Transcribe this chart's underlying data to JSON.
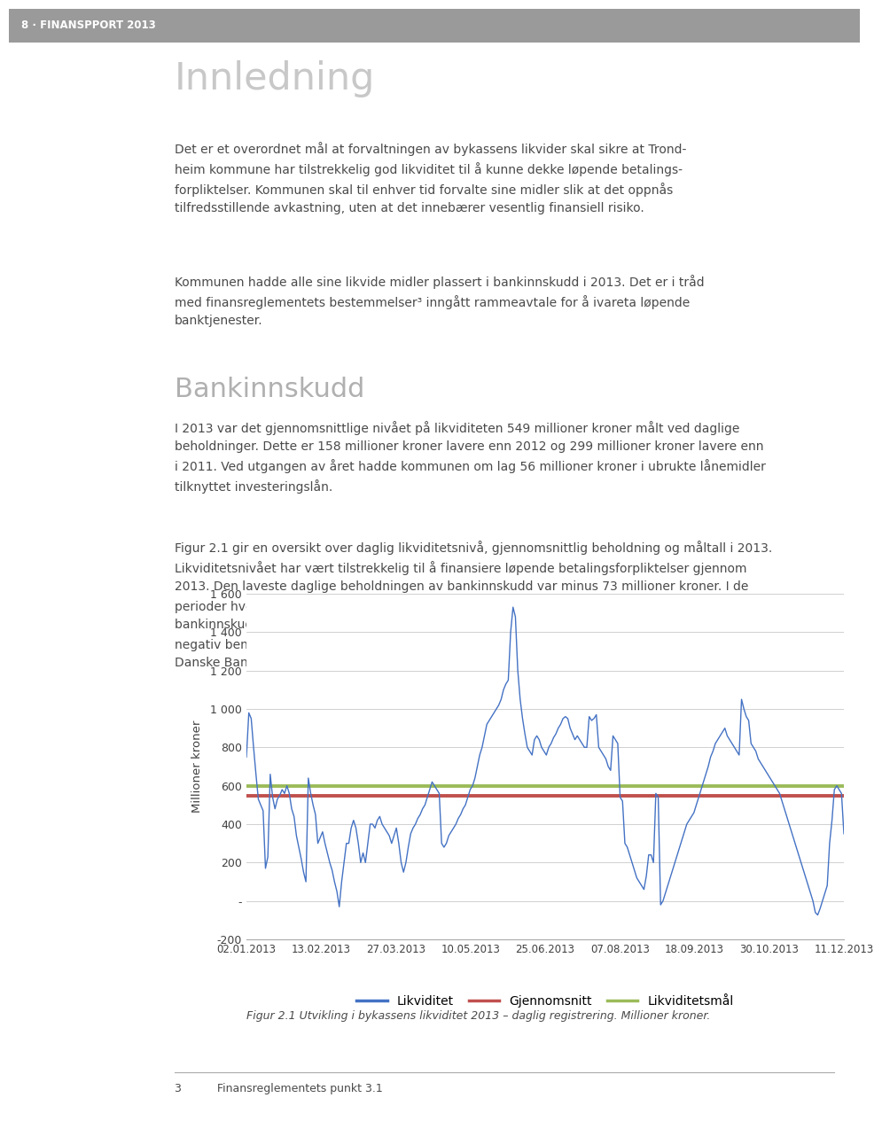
{
  "page_bg": "#ffffff",
  "header_bg": "#9a9a9a",
  "header_text": "8 · FINANSPPORT 2013",
  "title": "Innledning",
  "title_color": "#c8c8c8",
  "section_title": "Bankinnskudd",
  "section_title_color": "#b0b0b0",
  "text_color": "#4a4a4a",
  "fig_caption": "Figur 2.1 Utvikling i bykassens likviditet 2013 – daglig registrering. Millioner kroner.",
  "footnote_num": "3",
  "footnote_text": "Finansreglementets punkt 3.1",
  "ylabel": "Millioner kroner",
  "yticks": [
    -200,
    0,
    200,
    400,
    600,
    800,
    1000,
    1200,
    1400,
    1600
  ],
  "ytick_labels": [
    "-200",
    "-",
    "200",
    "400",
    "600",
    "800",
    "1 000",
    "1 200",
    "1 400",
    "1 600"
  ],
  "xtick_labels": [
    "02.01.2013",
    "13.02.2013",
    "27.03.2013",
    "10.05.2013",
    "25.06.2013",
    "07.08.2013",
    "18.09.2013",
    "30.10.2013",
    "11.12.2013"
  ],
  "line_color": "#4472C4",
  "avg_color": "#C0504D",
  "target_color": "#9BBB59",
  "avg_value": 549,
  "target_value": 600,
  "legend_labels": [
    "Likviditet",
    "Gjennomsnitt",
    "Likviditetsmål"
  ]
}
